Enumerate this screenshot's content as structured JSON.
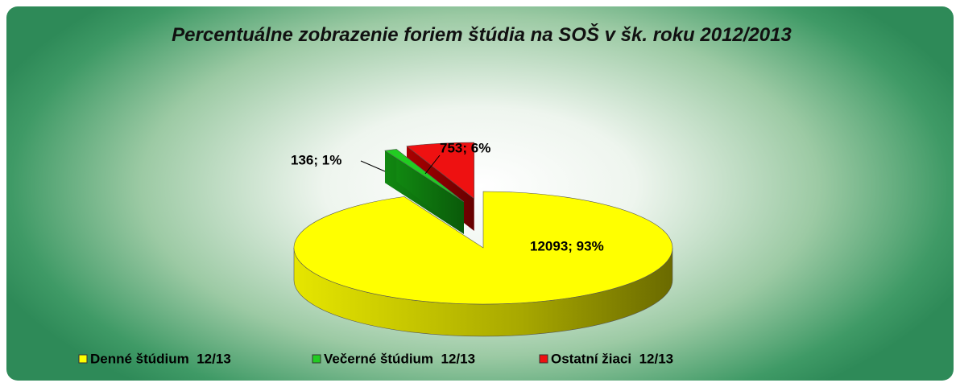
{
  "chart_data": {
    "type": "pie",
    "title": "Percentuálne zobrazenie foriem štúdia na SOŠ v šk. roku 2012/2013",
    "series": [
      {
        "name": "Denné štúdium  12/13",
        "color": "#ffff00",
        "values": [
          12093
        ],
        "value_labels": [
          "12093; 93%"
        ]
      },
      {
        "name": "Večerné štúdium  12/13",
        "color": "#22cc22",
        "values": [
          136
        ],
        "value_labels": [
          "136; 1%"
        ]
      },
      {
        "name": "Ostatní žiaci  12/13",
        "color": "#ee1111",
        "values": [
          753
        ],
        "value_labels": [
          "753; 6%"
        ]
      }
    ],
    "legend": "bottom"
  }
}
